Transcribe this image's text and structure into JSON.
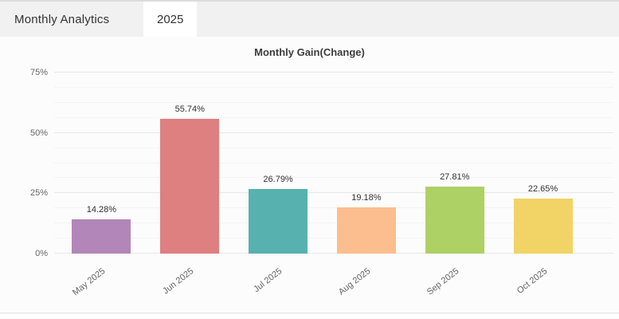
{
  "header": {
    "title": "Monthly Analytics",
    "tabs": [
      {
        "label": "2025",
        "active": true
      }
    ]
  },
  "chart_data": {
    "type": "bar",
    "title": "Monthly Gain(Change)",
    "categories": [
      "May 2025",
      "Jun 2025",
      "Jul 2025",
      "Aug 2025",
      "Sep 2025",
      "Oct 2025"
    ],
    "values": [
      14.28,
      55.74,
      26.79,
      19.18,
      27.81,
      22.65
    ],
    "value_labels": [
      "14.28%",
      "55.74%",
      "26.79%",
      "19.18%",
      "27.81%",
      "22.65%"
    ],
    "bar_colors": [
      "#b286b8",
      "#de7f80",
      "#57b1ae",
      "#fcbe8e",
      "#add164",
      "#f2d365"
    ],
    "xlabel": "",
    "ylabel": "",
    "ylim": [
      0,
      75
    ],
    "ytick_labels": [
      "0%",
      "25%",
      "50%",
      "75%"
    ],
    "ytick_values": [
      0,
      25,
      50,
      75
    ],
    "ytick_minor_step": 6.25,
    "grid": "horizontal",
    "legend": "none"
  }
}
